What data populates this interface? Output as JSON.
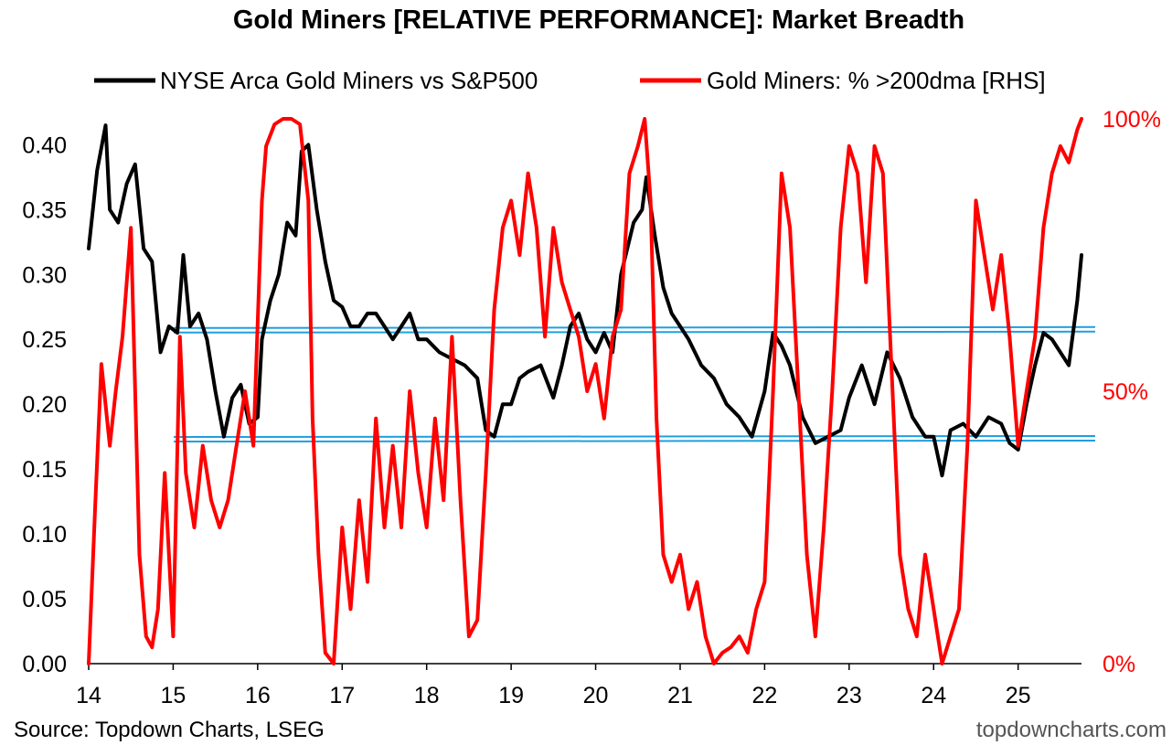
{
  "chart_data": {
    "type": "line",
    "title": "Gold Miners [RELATIVE PERFORMANCE]: Market Breadth",
    "x_tick_labels": [
      "14",
      "15",
      "16",
      "17",
      "18",
      "19",
      "20",
      "21",
      "22",
      "23",
      "24",
      "25"
    ],
    "x_range": [
      2014.0,
      2025.75
    ],
    "y_left": {
      "range": [
        0.0,
        0.42
      ],
      "ticks": [
        "0.00",
        "0.05",
        "0.10",
        "0.15",
        "0.20",
        "0.25",
        "0.30",
        "0.35",
        "0.40"
      ]
    },
    "y_right": {
      "range": [
        0,
        100
      ],
      "ticks": [
        "0%",
        "50%",
        "100%"
      ]
    },
    "series": [
      {
        "name": "NYSE Arca Gold Miners vs S&P500",
        "axis": "left",
        "color": "#000000",
        "x": [
          2014.0,
          2014.1,
          2014.2,
          2014.25,
          2014.35,
          2014.45,
          2014.55,
          2014.65,
          2014.75,
          2014.85,
          2014.95,
          2015.05,
          2015.12,
          2015.2,
          2015.3,
          2015.4,
          2015.5,
          2015.6,
          2015.7,
          2015.8,
          2015.9,
          2016.0,
          2016.05,
          2016.15,
          2016.25,
          2016.35,
          2016.45,
          2016.52,
          2016.6,
          2016.7,
          2016.8,
          2016.9,
          2017.0,
          2017.1,
          2017.2,
          2017.3,
          2017.4,
          2017.5,
          2017.6,
          2017.7,
          2017.8,
          2017.9,
          2018.0,
          2018.15,
          2018.3,
          2018.45,
          2018.6,
          2018.7,
          2018.8,
          2018.9,
          2019.0,
          2019.1,
          2019.2,
          2019.35,
          2019.5,
          2019.6,
          2019.7,
          2019.8,
          2019.9,
          2020.0,
          2020.1,
          2020.2,
          2020.3,
          2020.45,
          2020.55,
          2020.6,
          2020.7,
          2020.8,
          2020.9,
          2021.0,
          2021.1,
          2021.25,
          2021.4,
          2021.55,
          2021.7,
          2021.85,
          2022.0,
          2022.1,
          2022.2,
          2022.3,
          2022.45,
          2022.6,
          2022.75,
          2022.9,
          2023.0,
          2023.15,
          2023.3,
          2023.45,
          2023.6,
          2023.75,
          2023.9,
          2024.0,
          2024.1,
          2024.2,
          2024.35,
          2024.5,
          2024.65,
          2024.8,
          2024.9,
          2025.0,
          2025.1,
          2025.2,
          2025.3,
          2025.4,
          2025.5,
          2025.6,
          2025.7,
          2025.75
        ],
        "y": [
          0.32,
          0.38,
          0.415,
          0.35,
          0.34,
          0.37,
          0.385,
          0.32,
          0.31,
          0.24,
          0.26,
          0.255,
          0.315,
          0.26,
          0.27,
          0.25,
          0.21,
          0.175,
          0.205,
          0.215,
          0.185,
          0.19,
          0.25,
          0.28,
          0.3,
          0.34,
          0.33,
          0.395,
          0.4,
          0.35,
          0.31,
          0.28,
          0.275,
          0.26,
          0.26,
          0.27,
          0.27,
          0.26,
          0.25,
          0.26,
          0.27,
          0.25,
          0.25,
          0.24,
          0.235,
          0.23,
          0.22,
          0.18,
          0.175,
          0.2,
          0.2,
          0.22,
          0.225,
          0.23,
          0.205,
          0.23,
          0.26,
          0.27,
          0.25,
          0.24,
          0.255,
          0.24,
          0.3,
          0.34,
          0.35,
          0.375,
          0.33,
          0.29,
          0.27,
          0.26,
          0.25,
          0.23,
          0.22,
          0.2,
          0.19,
          0.175,
          0.21,
          0.255,
          0.245,
          0.23,
          0.19,
          0.17,
          0.175,
          0.18,
          0.205,
          0.23,
          0.2,
          0.24,
          0.22,
          0.19,
          0.175,
          0.175,
          0.145,
          0.18,
          0.185,
          0.175,
          0.19,
          0.185,
          0.17,
          0.165,
          0.2,
          0.23,
          0.255,
          0.25,
          0.24,
          0.23,
          0.28,
          0.315
        ]
      },
      {
        "name": "Gold Miners: % >200dma [RHS]",
        "axis": "right",
        "color": "#ff0000",
        "x": [
          2014.0,
          2014.08,
          2014.15,
          2014.25,
          2014.32,
          2014.4,
          2014.5,
          2014.6,
          2014.68,
          2014.75,
          2014.82,
          2014.9,
          2015.0,
          2015.08,
          2015.15,
          2015.25,
          2015.35,
          2015.45,
          2015.55,
          2015.65,
          2015.75,
          2015.85,
          2015.95,
          2016.05,
          2016.1,
          2016.2,
          2016.3,
          2016.4,
          2016.5,
          2016.6,
          2016.65,
          2016.72,
          2016.8,
          2016.9,
          2017.0,
          2017.1,
          2017.2,
          2017.3,
          2017.4,
          2017.5,
          2017.6,
          2017.7,
          2017.8,
          2017.9,
          2018.0,
          2018.1,
          2018.2,
          2018.3,
          2018.4,
          2018.5,
          2018.6,
          2018.7,
          2018.8,
          2018.9,
          2019.0,
          2019.1,
          2019.2,
          2019.3,
          2019.4,
          2019.5,
          2019.6,
          2019.7,
          2019.8,
          2019.9,
          2020.0,
          2020.1,
          2020.2,
          2020.3,
          2020.4,
          2020.5,
          2020.58,
          2020.65,
          2020.72,
          2020.8,
          2020.9,
          2021.0,
          2021.1,
          2021.2,
          2021.3,
          2021.4,
          2021.5,
          2021.6,
          2021.7,
          2021.8,
          2021.9,
          2022.0,
          2022.1,
          2022.2,
          2022.3,
          2022.4,
          2022.5,
          2022.6,
          2022.7,
          2022.8,
          2022.9,
          2023.0,
          2023.1,
          2023.2,
          2023.3,
          2023.4,
          2023.5,
          2023.6,
          2023.7,
          2023.8,
          2023.9,
          2024.0,
          2024.1,
          2024.2,
          2024.3,
          2024.4,
          2024.5,
          2024.6,
          2024.7,
          2024.8,
          2024.9,
          2025.0,
          2025.1,
          2025.2,
          2025.3,
          2025.4,
          2025.5,
          2025.6,
          2025.7,
          2025.75
        ],
        "y": [
          0,
          30,
          55,
          40,
          50,
          60,
          80,
          20,
          5,
          3,
          10,
          35,
          5,
          60,
          35,
          25,
          40,
          30,
          25,
          30,
          40,
          50,
          40,
          85,
          95,
          99,
          100,
          100,
          99,
          85,
          45,
          20,
          2,
          0,
          25,
          10,
          30,
          15,
          45,
          25,
          40,
          25,
          50,
          35,
          25,
          45,
          30,
          60,
          30,
          5,
          8,
          35,
          65,
          80,
          85,
          75,
          90,
          80,
          60,
          80,
          70,
          65,
          60,
          50,
          55,
          45,
          60,
          65,
          90,
          95,
          100,
          85,
          45,
          20,
          15,
          20,
          10,
          15,
          5,
          0,
          2,
          3,
          5,
          2,
          10,
          15,
          50,
          90,
          80,
          50,
          20,
          5,
          25,
          50,
          80,
          95,
          90,
          70,
          95,
          90,
          55,
          20,
          10,
          5,
          20,
          10,
          0,
          5,
          10,
          40,
          85,
          75,
          65,
          75,
          60,
          40,
          50,
          60,
          80,
          90,
          95,
          92,
          98,
          100
        ]
      }
    ],
    "hlines": [
      {
        "axis": "left",
        "y": 0.257,
        "color": "#1f9fe0"
      },
      {
        "axis": "left",
        "y": 0.173,
        "color": "#1f9fe0"
      }
    ],
    "legend": "top"
  },
  "footer": {
    "source": "Source: Topdown Charts, LSEG",
    "brand": "topdowncharts.com"
  }
}
